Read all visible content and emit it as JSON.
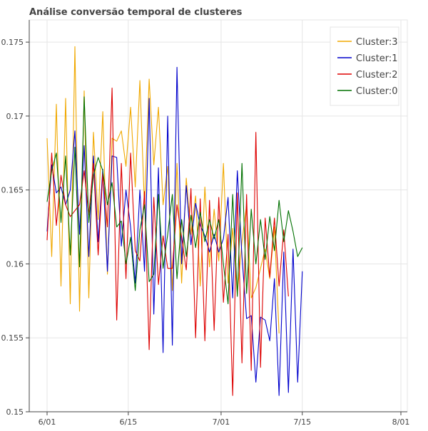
{
  "chart_data": {
    "type": "line",
    "title": "Análise conversão temporal de clusteres",
    "xlabel": "",
    "ylabel": "",
    "x_domain": [
      "2020-06-01",
      "2020-08-01"
    ],
    "ylim": [
      0.15,
      0.1765
    ],
    "x_ticks": [
      {
        "date": "2020-06-01",
        "label": "6/01"
      },
      {
        "date": "2020-06-15",
        "label": "6/15"
      },
      {
        "date": "2020-07-01",
        "label": "7/01"
      },
      {
        "date": "2020-07-15",
        "label": "7/15"
      },
      {
        "date": "2020-08-01",
        "label": "8/01"
      }
    ],
    "y_ticks": [
      {
        "value": 0.15,
        "label": "0.15"
      },
      {
        "value": 0.155,
        "label": "0.155"
      },
      {
        "value": 0.16,
        "label": "0.16"
      },
      {
        "value": 0.165,
        "label": "0.165"
      },
      {
        "value": 0.17,
        "label": "0.17"
      },
      {
        "value": 0.175,
        "label": "0.175"
      }
    ],
    "grid": true,
    "legend_position": "top-right",
    "x_start": "2020-06-01",
    "x_step_days": 0.8,
    "series": [
      {
        "name": "Cluster:3",
        "color": "#f0a800",
        "values": [
          0.1685,
          0.1605,
          0.1708,
          0.1585,
          0.1712,
          0.1573,
          0.1747,
          0.1568,
          0.1717,
          0.1577,
          0.1689,
          0.163,
          0.1703,
          0.1593,
          0.1685,
          0.1683,
          0.169,
          0.1666,
          0.1706,
          0.1652,
          0.1724,
          0.1638,
          0.1725,
          0.1667,
          0.1706,
          0.164,
          0.1666,
          0.1582,
          0.1668,
          0.1587,
          0.1658,
          0.162,
          0.1646,
          0.1585,
          0.1652,
          0.1598,
          0.1637,
          0.1602,
          0.1668,
          0.1587,
          0.1624,
          0.158,
          0.1615,
          0.164,
          0.1577,
          0.1584,
          0.1597,
          0.161,
          0.159,
          0.1625,
          0.1553
        ]
      },
      {
        "name": "Cluster:1",
        "color": "#0000cc",
        "values": [
          0.1622,
          0.1667,
          0.1648,
          0.1652,
          0.164,
          0.165,
          0.169,
          0.162,
          0.168,
          0.1605,
          0.1673,
          0.1615,
          0.1664,
          0.1595,
          0.1673,
          0.1672,
          0.1612,
          0.165,
          0.1625,
          0.1587,
          0.165,
          0.1595,
          0.1712,
          0.1566,
          0.1665,
          0.154,
          0.17,
          0.1545,
          0.1733,
          0.16,
          0.1653,
          0.1613,
          0.1641,
          0.1626,
          0.1619,
          0.1608,
          0.162,
          0.1608,
          0.1617,
          0.1645,
          0.1577,
          0.1663,
          0.1605,
          0.1563,
          0.1565,
          0.152,
          0.1564,
          0.1562,
          0.1548,
          0.159,
          0.1511,
          0.1608,
          0.1513,
          0.161,
          0.152,
          0.1595
        ]
      },
      {
        "name": "Cluster:2",
        "color": "#dd0000",
        "values": [
          0.1616,
          0.1675,
          0.1626,
          0.166,
          0.164,
          0.1632,
          0.1636,
          0.164,
          0.1663,
          0.1633,
          0.1668,
          0.1606,
          0.1661,
          0.1625,
          0.1719,
          0.1562,
          0.1668,
          0.159,
          0.1675,
          0.1609,
          0.1602,
          0.1649,
          0.1542,
          0.1645,
          0.1586,
          0.1619,
          0.1597,
          0.1597,
          0.164,
          0.1618,
          0.1596,
          0.1651,
          0.155,
          0.1644,
          0.1548,
          0.1643,
          0.1555,
          0.1645,
          0.1574,
          0.162,
          0.1511,
          0.1648,
          0.1533,
          0.1647,
          0.1528,
          0.1689,
          0.153,
          0.1631,
          0.1591,
          0.1631,
          0.1585,
          0.1623,
          0.1578
        ]
      },
      {
        "name": "Cluster:0",
        "color": "#007000",
        "values": [
          0.1642,
          0.1663,
          0.1675,
          0.1628,
          0.1673,
          0.1606,
          0.1679,
          0.1598,
          0.1713,
          0.1628,
          0.166,
          0.1672,
          0.1663,
          0.164,
          0.1655,
          0.1625,
          0.1629,
          0.16,
          0.1618,
          0.1582,
          0.1623,
          0.164,
          0.1588,
          0.1593,
          0.1647,
          0.1597,
          0.162,
          0.1647,
          0.159,
          0.163,
          0.1605,
          0.1633,
          0.1611,
          0.1635,
          0.1615,
          0.163,
          0.1617,
          0.163,
          0.16,
          0.1573,
          0.1647,
          0.1578,
          0.1668,
          0.158,
          0.1637,
          0.16,
          0.163,
          0.1603,
          0.1632,
          0.1609,
          0.1643,
          0.1615,
          0.1636,
          0.1622,
          0.1605,
          0.1611
        ]
      }
    ]
  }
}
